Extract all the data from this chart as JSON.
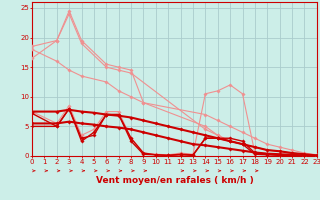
{
  "xlabel": "Vent moyen/en rafales ( km/h )",
  "background_color": "#cceee8",
  "grid_color": "#aacccc",
  "xlim": [
    0,
    23
  ],
  "ylim": [
    0,
    26
  ],
  "yticks": [
    0,
    5,
    10,
    15,
    20,
    25
  ],
  "xticks": [
    0,
    1,
    2,
    3,
    4,
    5,
    6,
    7,
    8,
    9,
    10,
    11,
    12,
    13,
    14,
    15,
    16,
    17,
    18,
    19,
    20,
    21,
    22,
    23
  ],
  "series": [
    {
      "x": [
        0,
        2,
        3,
        4,
        6,
        7,
        8,
        9,
        14,
        15,
        16,
        17,
        18,
        19,
        20,
        21,
        22,
        23
      ],
      "y": [
        18.5,
        19.5,
        24.5,
        19.5,
        15.5,
        15.0,
        14.5,
        9.0,
        5.0,
        3.5,
        2.5,
        2.0,
        1.5,
        1.0,
        0.8,
        0.5,
        0.3,
        0.1
      ],
      "color": "#f09090",
      "lw": 0.8,
      "marker": "D",
      "ms": 1.8
    },
    {
      "x": [
        0,
        2,
        3,
        4,
        6,
        7,
        8,
        14,
        15,
        16,
        17,
        18,
        19,
        20,
        21,
        22,
        23
      ],
      "y": [
        16.5,
        19.5,
        24.0,
        19.0,
        15.0,
        14.5,
        14.0,
        4.5,
        3.5,
        2.5,
        2.0,
        1.5,
        1.0,
        0.8,
        0.4,
        0.2,
        0.05
      ],
      "color": "#f09090",
      "lw": 0.8,
      "marker": "D",
      "ms": 1.8
    },
    {
      "x": [
        0,
        2,
        3,
        4,
        6,
        7,
        8,
        9,
        14,
        15,
        16,
        17,
        18,
        19,
        20,
        21,
        22,
        23
      ],
      "y": [
        18.0,
        16.0,
        14.5,
        13.5,
        12.5,
        11.0,
        10.0,
        9.0,
        7.0,
        6.0,
        5.0,
        4.0,
        3.0,
        2.0,
        1.5,
        1.0,
        0.5,
        0.2
      ],
      "color": "#f09090",
      "lw": 0.8,
      "marker": "D",
      "ms": 1.8
    },
    {
      "x": [
        0,
        2,
        3,
        4,
        5,
        6,
        7,
        8,
        9,
        10,
        11,
        12,
        13,
        14,
        15,
        16,
        17,
        18,
        19,
        20,
        21,
        22,
        23
      ],
      "y": [
        7.5,
        5.5,
        8.5,
        3.5,
        4.5,
        7.5,
        7.5,
        3.0,
        0.5,
        0.3,
        0.2,
        0.5,
        0.3,
        10.5,
        11.0,
        12.0,
        10.5,
        0.5,
        0.3,
        0.2,
        0.1,
        0.05,
        0.0
      ],
      "color": "#f09090",
      "lw": 0.8,
      "marker": "D",
      "ms": 1.8
    },
    {
      "x": [
        0,
        2,
        3,
        4,
        5,
        6,
        7,
        8,
        9,
        10,
        11,
        12,
        13,
        14,
        15,
        16,
        17,
        18,
        19,
        20,
        21,
        22,
        23
      ],
      "y": [
        7.2,
        5.0,
        8.0,
        2.5,
        4.0,
        7.0,
        7.0,
        2.5,
        0.3,
        0.2,
        0.1,
        0.3,
        0.2,
        3.0,
        3.0,
        3.0,
        2.5,
        0.5,
        0.3,
        0.2,
        0.1,
        0.05,
        0.0
      ],
      "color": "#cc0000",
      "lw": 1.0,
      "marker": "D",
      "ms": 1.8
    },
    {
      "x": [
        0,
        2,
        3,
        4,
        5,
        6,
        7,
        8,
        9,
        10,
        11,
        12,
        13,
        14,
        15,
        16,
        17,
        18,
        19,
        20,
        21,
        22,
        23
      ],
      "y": [
        5.0,
        5.0,
        8.0,
        3.0,
        3.5,
        7.0,
        7.0,
        3.0,
        0.5,
        0.2,
        0.1,
        0.2,
        0.1,
        3.0,
        3.0,
        2.5,
        2.0,
        0.3,
        0.2,
        0.1,
        0.05,
        0.02,
        0.0
      ],
      "color": "#cc0000",
      "lw": 1.0,
      "marker": "D",
      "ms": 1.8
    },
    {
      "x": [
        0,
        2,
        3,
        4,
        5,
        6,
        7,
        8,
        9,
        10,
        11,
        12,
        13,
        14,
        15,
        16,
        17,
        18,
        19,
        20,
        21,
        22,
        23
      ],
      "y": [
        7.5,
        7.5,
        7.8,
        7.5,
        7.3,
        7.0,
        6.8,
        6.5,
        6.0,
        5.5,
        5.0,
        4.5,
        4.0,
        3.5,
        3.0,
        2.5,
        2.0,
        1.5,
        1.0,
        0.8,
        0.5,
        0.3,
        0.1
      ],
      "color": "#cc0000",
      "lw": 1.5,
      "marker": "D",
      "ms": 1.8
    },
    {
      "x": [
        0,
        2,
        3,
        4,
        5,
        6,
        7,
        8,
        9,
        10,
        11,
        12,
        13,
        14,
        15,
        16,
        17,
        18,
        19,
        20,
        21,
        22,
        23
      ],
      "y": [
        5.5,
        5.5,
        5.8,
        5.5,
        5.3,
        5.0,
        4.8,
        4.5,
        4.0,
        3.5,
        3.0,
        2.5,
        2.0,
        1.8,
        1.5,
        1.2,
        0.9,
        0.6,
        0.4,
        0.3,
        0.2,
        0.1,
        0.05
      ],
      "color": "#cc0000",
      "lw": 1.5,
      "marker": "D",
      "ms": 1.8
    }
  ],
  "tick_fontsize": 5.0,
  "xlabel_fontsize": 6.5
}
